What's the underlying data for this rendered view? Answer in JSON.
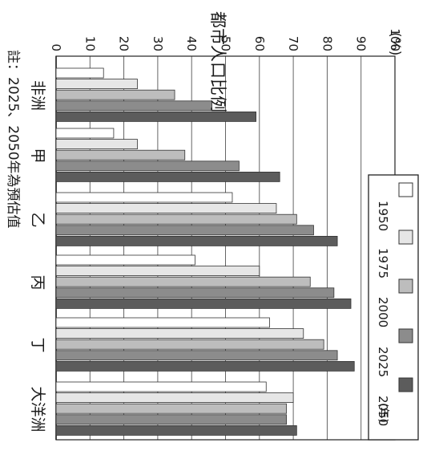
{
  "chart_data": {
    "type": "bar",
    "orientation": "horizontal",
    "page_rotation": "90deg clockwise",
    "categories": [
      "非洲",
      "甲",
      "乙",
      "丙",
      "丁",
      "大洋洲"
    ],
    "series": [
      {
        "name": "1950",
        "color": "#ffffff",
        "values": [
          14,
          17,
          52,
          41,
          63,
          62
        ]
      },
      {
        "name": "1975",
        "color": "#e6e6e6",
        "values": [
          24,
          24,
          65,
          60,
          73,
          70
        ]
      },
      {
        "name": "2000",
        "color": "#bdbdbd",
        "values": [
          35,
          38,
          71,
          75,
          79,
          68
        ]
      },
      {
        "name": "2025",
        "color": "#8c8c8c",
        "values": [
          46,
          54,
          76,
          82,
          83,
          68
        ]
      },
      {
        "name": "2050",
        "color": "#5c5c5c",
        "values": [
          59,
          66,
          83,
          87,
          88,
          71
        ]
      }
    ],
    "ylabel": "都市人口比例",
    "unit": "(%)",
    "legend_unit": "(年)",
    "ylim": [
      0,
      100
    ],
    "yticks": [
      0,
      10,
      20,
      30,
      40,
      50,
      60,
      70,
      80,
      90,
      100
    ],
    "grid": true,
    "legend_position": "right",
    "note": "註：2025、2050年為預估值"
  }
}
